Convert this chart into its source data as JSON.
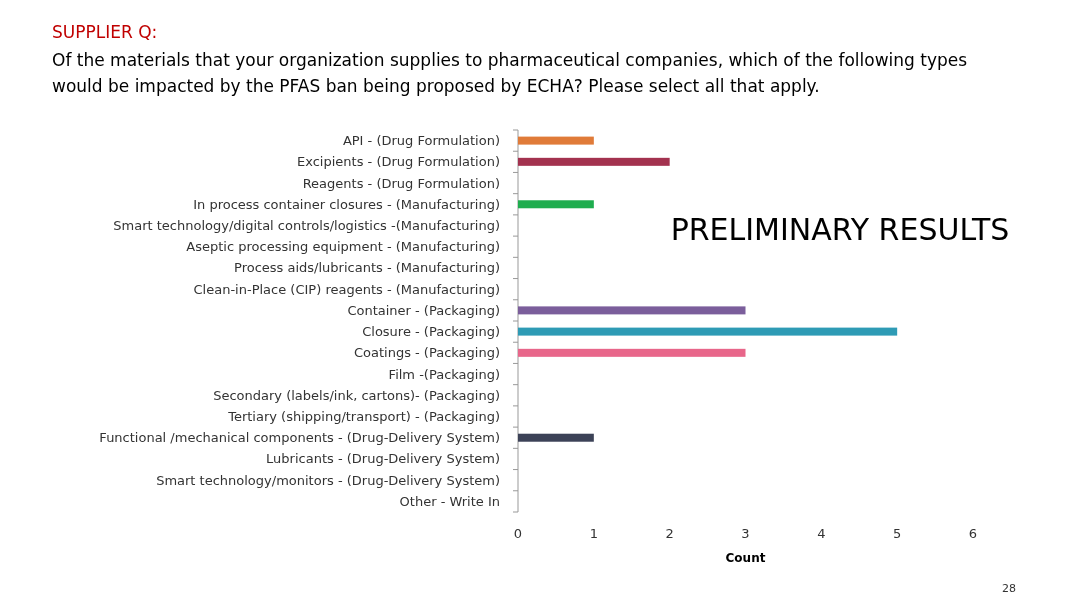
{
  "chart_data": {
    "type": "bar",
    "orientation": "horizontal",
    "title": "SUPPLIER Q:",
    "subtitle": "Of the materials that your organization supplies to pharmaceutical companies, which of the following types would be impacted by the PFAS ban being proposed by ECHA? Please select all that apply.",
    "xlabel": "Count",
    "categories": [
      "API - (Drug Formulation)",
      "Excipients  - (Drug Formulation)",
      "Reagents - (Drug Formulation)",
      "In process container closures - (Manufacturing)",
      "Smart technology/digital controls/logistics -(Manufacturing)",
      "Aseptic processing equipment  - (Manufacturing)",
      "Process aids/lubricants - (Manufacturing)",
      "Clean-in-Place (CIP) reagents - (Manufacturing)",
      "Container - (Packaging)",
      "Closure - (Packaging)",
      "Coatings - (Packaging)",
      "Film -(Packaging)",
      "Secondary (labels/ink, cartons)- (Packaging)",
      "Tertiary (shipping/transport) - (Packaging)",
      "Functional /mechanical components - (Drug-Delivery System)",
      "Lubricants - (Drug-Delivery System)",
      "Smart technology/monitors - (Drug-Delivery System)",
      "Other - Write In"
    ],
    "values": [
      1,
      2,
      0,
      1,
      0,
      0,
      0,
      0,
      3,
      5,
      3,
      0,
      0,
      0,
      1,
      0,
      0,
      0
    ],
    "colors": [
      "#e07b39",
      "#a3324f",
      "#808080",
      "#1fad4e",
      "#808080",
      "#808080",
      "#808080",
      "#808080",
      "#7b5e9b",
      "#2e9bb5",
      "#e8668a",
      "#808080",
      "#808080",
      "#808080",
      "#3c4257",
      "#808080",
      "#808080",
      "#808080"
    ],
    "xlim": [
      0,
      6
    ],
    "xticks": [
      0,
      1,
      2,
      3,
      4,
      5,
      6
    ],
    "grid": false,
    "annotations": [
      "PRELIMINARY RESULTS",
      "28"
    ]
  }
}
